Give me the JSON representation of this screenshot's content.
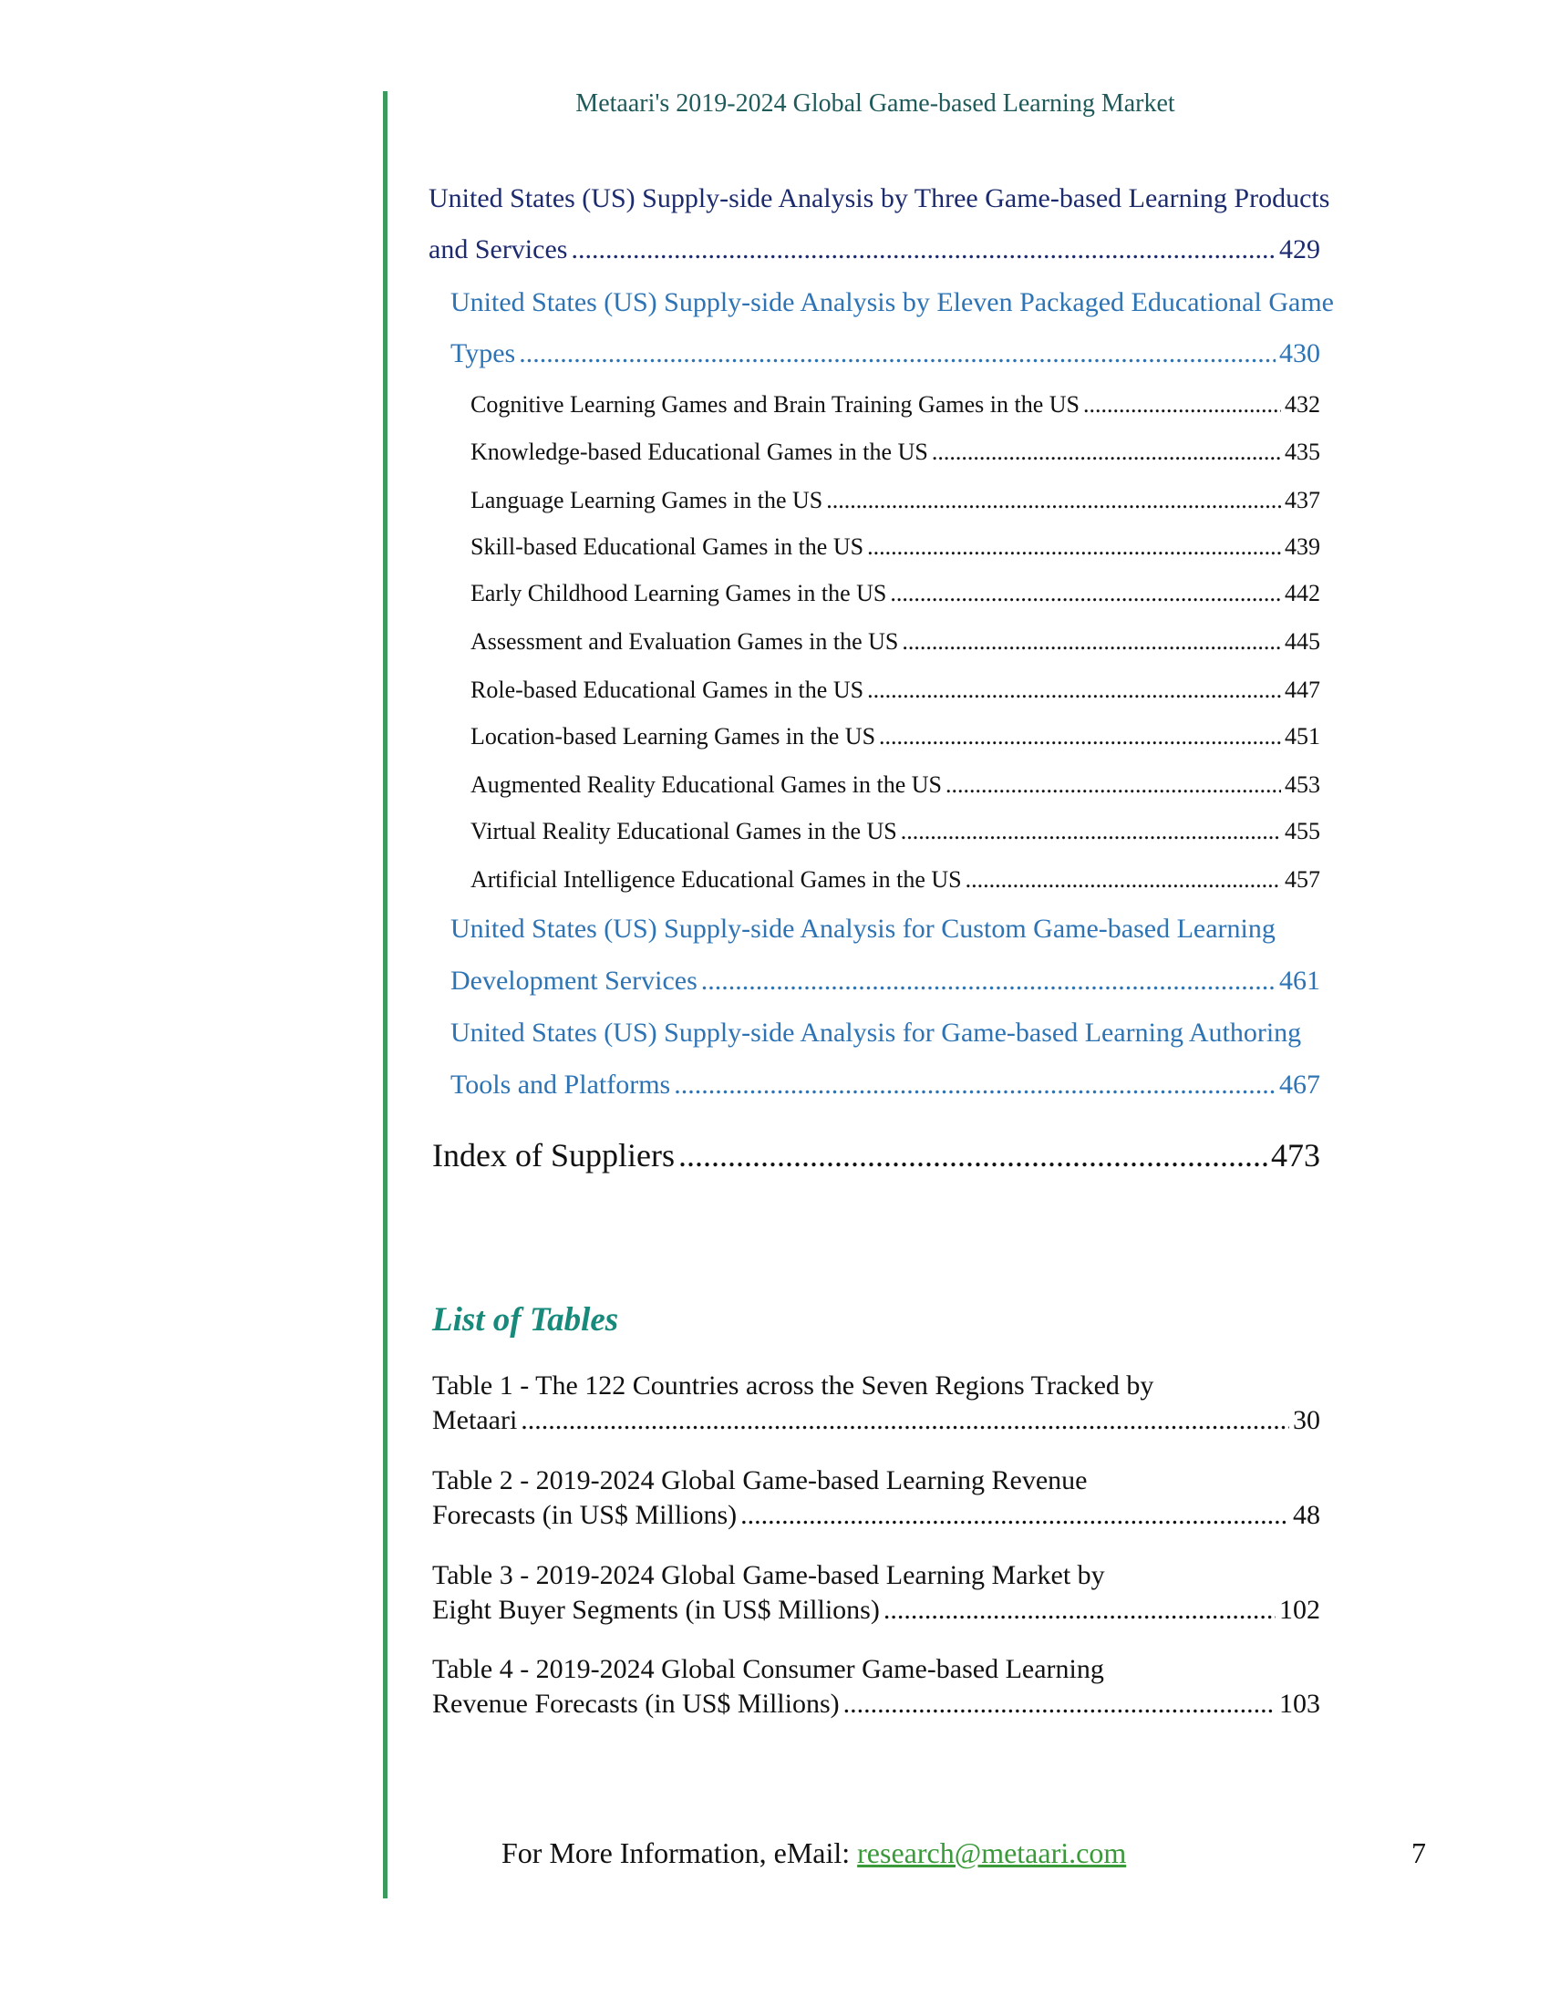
{
  "header": {
    "title": "Metaari's 2019-2024 Global Game-based Learning Market"
  },
  "toc": {
    "level1": {
      "line1": "United States (US) Supply-side Analysis by Three Game-based Learning Products",
      "line2": "and Services",
      "page": "429"
    },
    "level2_packaged": {
      "line1": "United States (US) Supply-side Analysis by Eleven Packaged Educational Game",
      "line2": "Types",
      "page": "430"
    },
    "level3": [
      {
        "title": "Cognitive Learning Games and Brain Training Games in the US",
        "page": "432"
      },
      {
        "title": "Knowledge-based Educational Games in the US",
        "page": "435"
      },
      {
        "title": "Language Learning Games in the US",
        "page": "437"
      },
      {
        "title": "Skill-based Educational Games in the US",
        "page": "439"
      },
      {
        "title": "Early Childhood Learning Games in the US",
        "page": "442"
      },
      {
        "title": "Assessment and Evaluation Games in the US",
        "page": "445"
      },
      {
        "title": "Role-based Educational Games in the US",
        "page": "447"
      },
      {
        "title": "Location-based Learning Games in the US",
        "page": "451"
      },
      {
        "title": "Augmented Reality Educational Games in the US",
        "page": "453"
      },
      {
        "title": "Virtual Reality Educational Games in the US",
        "page": "455"
      },
      {
        "title": "Artificial Intelligence Educational Games in the US",
        "page": "457"
      }
    ],
    "level2_custom": {
      "line1": "United States (US)  Supply-side Analysis for Custom Game-based Learning",
      "line2": "Development Services",
      "page": "461"
    },
    "level2_authoring": {
      "line1": "United States (US)  Supply-side Analysis for Game-based Learning Authoring",
      "line2": "Tools and Platforms",
      "page": "467"
    },
    "index": {
      "title": "Index of Suppliers",
      "page": "473"
    }
  },
  "list_of_tables": {
    "heading": "List of Tables",
    "items": [
      {
        "line1": "Table 1 - The 122 Countries across the Seven Regions Tracked by",
        "line2": "Metaari",
        "page": "30"
      },
      {
        "line1": "Table 2 - 2019-2024 Global Game-based Learning Revenue",
        "line2": "Forecasts (in US$ Millions)",
        "page": "48"
      },
      {
        "line1": "Table 3 - 2019-2024 Global Game-based Learning Market by",
        "line2": "Eight Buyer Segments (in US$ Millions)",
        "page": "102"
      },
      {
        "line1": "Table 4 - 2019-2024 Global Consumer Game-based Learning",
        "line2": "Revenue Forecasts (in US$ Millions)",
        "page": "103"
      }
    ]
  },
  "footer": {
    "text": "For More Information, eMail: ",
    "email": "research@metaari.com",
    "page_number": "7"
  },
  "colors": {
    "accent_bar": "#3c9a5f",
    "level1": "#1c2a6e",
    "level2": "#2e74b5",
    "heading": "#178a7c",
    "link": "#3a9a3a"
  }
}
